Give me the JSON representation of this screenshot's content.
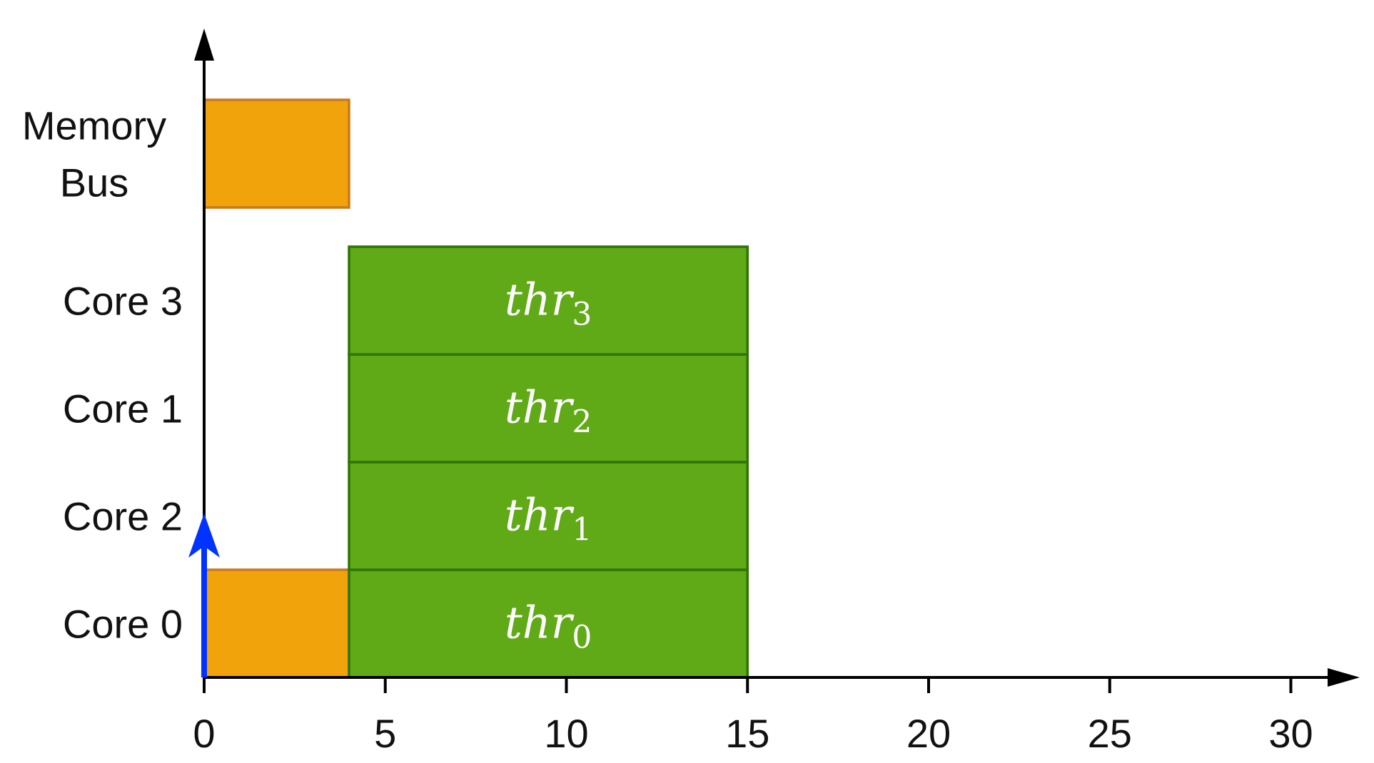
{
  "chart_data": {
    "type": "gantt",
    "xlim": [
      0,
      31.5
    ],
    "x_ticks": [
      0,
      5,
      10,
      15,
      20,
      25,
      30
    ],
    "rows": [
      {
        "id": "core0",
        "label": "Core 0"
      },
      {
        "id": "core2",
        "label": "Core 2"
      },
      {
        "id": "core1",
        "label": "Core 1"
      },
      {
        "id": "core3",
        "label": "Core 3"
      },
      {
        "id": "membus",
        "label": "Memory Bus",
        "label_lines": [
          "Memory",
          "Bus"
        ]
      }
    ],
    "bars": [
      {
        "row": "membus",
        "start": 0,
        "end": 4,
        "color": "#F0A30A",
        "stroke": "#C97A1A"
      },
      {
        "row": "core0",
        "start": 0,
        "end": 4,
        "color": "#F0A30A",
        "stroke": "#C97A1A"
      },
      {
        "row": "core0",
        "start": 4,
        "end": 15,
        "color": "#60A917",
        "stroke": "#2D7600",
        "label": "thr",
        "sub": "0"
      },
      {
        "row": "core2",
        "start": 4,
        "end": 15,
        "color": "#60A917",
        "stroke": "#2D7600",
        "label": "thr",
        "sub": "1"
      },
      {
        "row": "core1",
        "start": 4,
        "end": 15,
        "color": "#60A917",
        "stroke": "#2D7600",
        "label": "thr",
        "sub": "2"
      },
      {
        "row": "core3",
        "start": 4,
        "end": 15,
        "color": "#60A917",
        "stroke": "#2D7600",
        "label": "thr",
        "sub": "3"
      }
    ],
    "markers": [
      {
        "x": 0,
        "row": "core0",
        "type": "arrow-up",
        "color": "#0033FF"
      }
    ],
    "axis_color": "#000000"
  }
}
